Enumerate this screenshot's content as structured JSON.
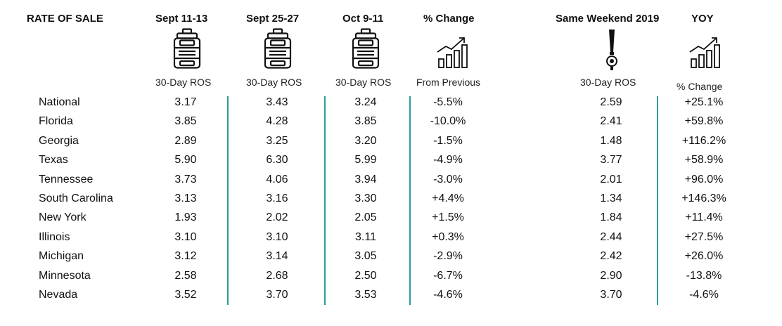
{
  "headers": {
    "rate_of_sale": "RATE OF SALE",
    "col1": "Sept 11-13",
    "col2": "Sept 25-27",
    "col3": "Oct 9-11",
    "col4": "% Change",
    "col5": "Same Weekend 2019",
    "col6": "YOY"
  },
  "subheaders": {
    "col1": "30-Day ROS",
    "col2": "30-Day ROS",
    "col3": "30-Day ROS",
    "col4": "From Previous",
    "col5": "30-Day ROS",
    "col6": "% Change"
  },
  "icons": {
    "col1": "keg-icon",
    "col2": "keg-icon",
    "col3": "keg-icon",
    "col4": "growth-chart-icon",
    "col5": "beer-tap-icon",
    "col6": "growth-chart-icon"
  },
  "accent_color": "#2a9d9a",
  "rows": [
    {
      "state": "National",
      "c1": "3.17",
      "c2": "3.43",
      "c3": "3.24",
      "c4": "-5.5%",
      "c5": "2.59",
      "c6": "+25.1%"
    },
    {
      "state": "Florida",
      "c1": "3.85",
      "c2": "4.28",
      "c3": "3.85",
      "c4": "-10.0%",
      "c5": "2.41",
      "c6": "+59.8%"
    },
    {
      "state": "Georgia",
      "c1": "2.89",
      "c2": "3.25",
      "c3": "3.20",
      "c4": "-1.5%",
      "c5": "1.48",
      "c6": "+116.2%"
    },
    {
      "state": "Texas",
      "c1": "5.90",
      "c2": "6.30",
      "c3": "5.99",
      "c4": "-4.9%",
      "c5": "3.77",
      "c6": "+58.9%"
    },
    {
      "state": "Tennessee",
      "c1": "3.73",
      "c2": "4.06",
      "c3": "3.94",
      "c4": "-3.0%",
      "c5": "2.01",
      "c6": "+96.0%"
    },
    {
      "state": "South Carolina",
      "c1": "3.13",
      "c2": "3.16",
      "c3": "3.30",
      "c4": "+4.4%",
      "c5": "1.34",
      "c6": "+146.3%"
    },
    {
      "state": "New York",
      "c1": "1.93",
      "c2": "2.02",
      "c3": "2.05",
      "c4": "+1.5%",
      "c5": "1.84",
      "c6": "+11.4%"
    },
    {
      "state": "Illinois",
      "c1": "3.10",
      "c2": "3.10",
      "c3": "3.11",
      "c4": "+0.3%",
      "c5": "2.44",
      "c6": "+27.5%"
    },
    {
      "state": "Michigan",
      "c1": "3.12",
      "c2": "3.14",
      "c3": "3.05",
      "c4": "-2.9%",
      "c5": "2.42",
      "c6": "+26.0%"
    },
    {
      "state": "Minnesota",
      "c1": "2.58",
      "c2": "2.68",
      "c3": "2.50",
      "c4": "-6.7%",
      "c5": "2.90",
      "c6": "-13.8%"
    },
    {
      "state": "Nevada",
      "c1": "3.52",
      "c2": "3.70",
      "c3": "3.53",
      "c4": "-4.6%",
      "c5": "3.70",
      "c6": "-4.6%"
    }
  ]
}
